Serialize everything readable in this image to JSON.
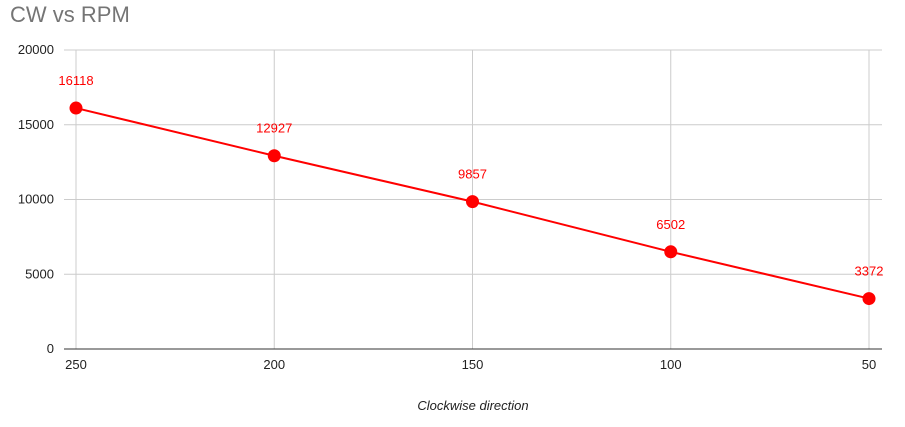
{
  "chart_data": {
    "type": "line",
    "title": "CW vs RPM",
    "xlabel": "Clockwise direction",
    "ylabel": "",
    "categories": [
      "250",
      "200",
      "150",
      "100",
      "50"
    ],
    "series": [
      {
        "values": [
          16118,
          12927,
          9857,
          6502,
          3372
        ]
      }
    ],
    "data_labels": [
      "16118",
      "12927",
      "9857",
      "6502",
      "3372"
    ],
    "ylim": [
      0,
      20000
    ],
    "yticks": [
      0,
      5000,
      10000,
      15000,
      20000
    ],
    "ytick_labels": [
      "0",
      "5000",
      "10000",
      "15000",
      "20000"
    ],
    "grid": true,
    "legend": "none",
    "colors": {
      "series": "#ff0000",
      "grid": "#cccccc",
      "axis": "#333333"
    }
  }
}
